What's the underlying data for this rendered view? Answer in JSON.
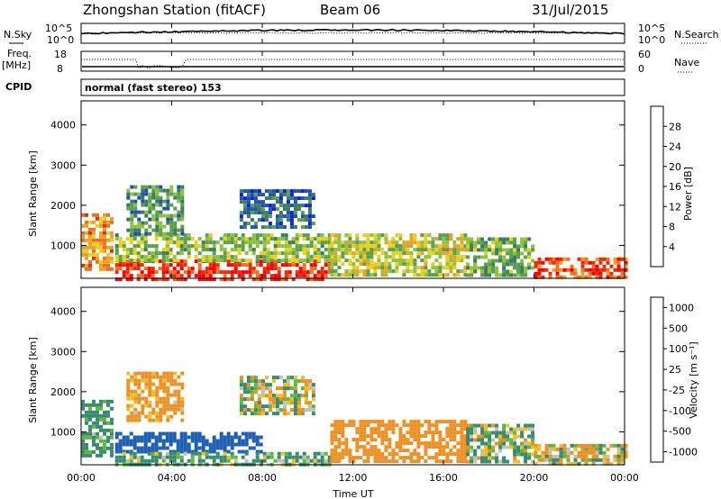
{
  "header": {
    "station": "Zhongshan Station (fitACF)",
    "beam": "Beam 06",
    "date": "31/Jul/2015"
  },
  "top_panels": {
    "nsky_label": "N.Sky",
    "nsearch_label": "N.Search",
    "noise_ticks_left": [
      "10^5",
      "10^0"
    ],
    "noise_ticks_right": [
      "10^5",
      "10^0"
    ],
    "freq_label_1": "Freq.",
    "freq_label_2": "[MHz]",
    "freq_ticks": [
      "18",
      "8"
    ],
    "nave_label": "Nave",
    "nave_ticks": [
      "60",
      "0"
    ],
    "cpid_label": "CPID",
    "cpid_text": "normal (fast stereo) 153"
  },
  "axes": {
    "ylabel": "Slant Range [km]",
    "xlabel": "Time UT",
    "x_ticks": [
      "00:00",
      "04:00",
      "08:00",
      "12:00",
      "16:00",
      "20:00",
      "00:00"
    ],
    "y_ticks": [
      "1000",
      "2000",
      "3000",
      "4000"
    ]
  },
  "power_colorbar": {
    "label": "Power [dB]",
    "ticks": [
      "4",
      "8",
      "12",
      "16",
      "20",
      "24",
      "28"
    ],
    "colors": [
      "#1020e0",
      "#2050b0",
      "#3a7c60",
      "#5a9e50",
      "#8fc040",
      "#e8d020",
      "#f0a020",
      "#f07020",
      "#e03010",
      "#ff0000"
    ]
  },
  "velocity_colorbar": {
    "label": "Velocity [m s⁻¹]",
    "ticks": [
      "1000",
      "500",
      "100",
      "25",
      "-25",
      "-100",
      "-500",
      "-1000"
    ],
    "colors": [
      "#1010e0",
      "#2060b0",
      "#3a8a70",
      "#5cb840",
      "#c0c0c0",
      "#f0c020",
      "#f09020",
      "#f06020",
      "#ff0000"
    ]
  },
  "chart_data": {
    "type": "heatmap",
    "title": "Zhongshan Station (fitACF)",
    "x_range_hours": [
      0,
      24
    ],
    "y_range_km": [
      180,
      4600
    ],
    "panels": [
      {
        "name": "Power",
        "unit": "dB",
        "regions": [
          {
            "t0": 0.0,
            "t1": 1.3,
            "r0": 400,
            "r1": 1800,
            "value": 22
          },
          {
            "t0": 1.5,
            "t1": 11.0,
            "r0": 200,
            "r1": 650,
            "value": 28
          },
          {
            "t0": 1.5,
            "t1": 11.0,
            "r0": 650,
            "r1": 1300,
            "value": 14
          },
          {
            "t0": 2.0,
            "t1": 4.5,
            "r0": 1300,
            "r1": 2500,
            "value": 10
          },
          {
            "t0": 7.0,
            "t1": 10.2,
            "r0": 1500,
            "r1": 2400,
            "value": 6
          },
          {
            "t0": 11.0,
            "t1": 17.0,
            "r0": 300,
            "r1": 1300,
            "value": 16
          },
          {
            "t0": 17.0,
            "t1": 20.0,
            "r0": 300,
            "r1": 1200,
            "value": 12
          },
          {
            "t0": 20.0,
            "t1": 24.0,
            "r0": 200,
            "r1": 700,
            "value": 26
          }
        ]
      },
      {
        "name": "Velocity",
        "unit": "m s^-1",
        "regions": [
          {
            "t0": 0.0,
            "t1": 1.3,
            "r0": 400,
            "r1": 1800,
            "value": 200
          },
          {
            "t0": 1.5,
            "t1": 8.0,
            "r0": 500,
            "r1": 1000,
            "value": 800
          },
          {
            "t0": 1.5,
            "t1": 11.0,
            "r0": 200,
            "r1": 500,
            "value": 150
          },
          {
            "t0": 2.0,
            "t1": 4.5,
            "r0": 1300,
            "r1": 2500,
            "value": -200
          },
          {
            "t0": 7.0,
            "t1": 10.2,
            "r0": 1500,
            "r1": 2400,
            "value": 0
          },
          {
            "t0": 11.0,
            "t1": 17.0,
            "r0": 300,
            "r1": 1300,
            "value": -300
          },
          {
            "t0": 17.0,
            "t1": 20.0,
            "r0": 300,
            "r1": 1200,
            "value": 60
          },
          {
            "t0": 20.0,
            "t1": 24.0,
            "r0": 200,
            "r1": 700,
            "value": -50
          }
        ]
      }
    ]
  }
}
